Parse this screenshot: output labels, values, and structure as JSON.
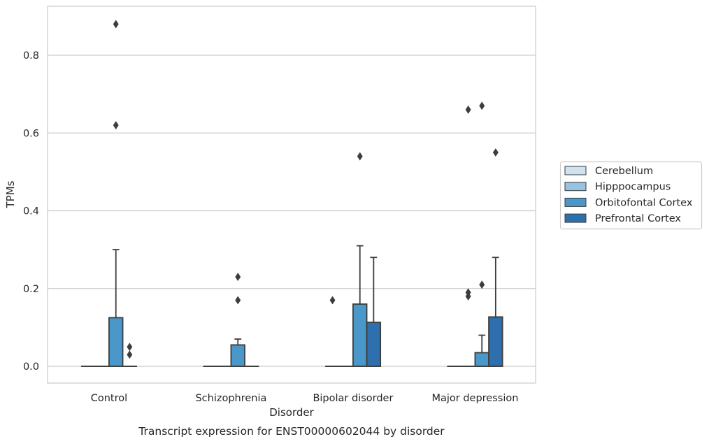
{
  "chart_data": {
    "type": "boxplot",
    "title": "",
    "caption": "Transcript expression for ENST00000602044 by disorder",
    "xlabel": "Disorder",
    "ylabel": "TPMs",
    "ylim": [
      -0.042,
      0.93
    ],
    "yticks": [
      0.0,
      0.2,
      0.4,
      0.6,
      0.8
    ],
    "ytick_labels": [
      "0.0",
      "0.2",
      "0.4",
      "0.6",
      "0.8"
    ],
    "grid": "horizontal",
    "legend_position": "right",
    "categories": [
      "Control",
      "Schizophrenia",
      "Bipolar disorder",
      "Major depression"
    ],
    "series": [
      {
        "name": "Cerebellum",
        "color": "#d0e1f2",
        "boxes": [
          {
            "category": "Control",
            "min": 0,
            "q1": 0,
            "median": 0,
            "q3": 0,
            "max": 0,
            "outliers": []
          },
          {
            "category": "Schizophrenia",
            "min": 0,
            "q1": 0,
            "median": 0,
            "q3": 0,
            "max": 0,
            "outliers": []
          },
          {
            "category": "Bipolar disorder",
            "min": 0,
            "q1": 0,
            "median": 0,
            "q3": 0,
            "max": 0,
            "outliers": [
              0.17
            ]
          },
          {
            "category": "Major depression",
            "min": 0,
            "q1": 0,
            "median": 0,
            "q3": 0,
            "max": 0,
            "outliers": []
          }
        ]
      },
      {
        "name": "Hipppocampus",
        "color": "#94c4df",
        "boxes": [
          {
            "category": "Control",
            "min": 0,
            "q1": 0,
            "median": 0,
            "q3": 0,
            "max": 0,
            "outliers": []
          },
          {
            "category": "Schizophrenia",
            "min": 0,
            "q1": 0,
            "median": 0,
            "q3": 0,
            "max": 0,
            "outliers": []
          },
          {
            "category": "Bipolar disorder",
            "min": 0,
            "q1": 0,
            "median": 0,
            "q3": 0,
            "max": 0,
            "outliers": []
          },
          {
            "category": "Major depression",
            "min": 0,
            "q1": 0,
            "median": 0,
            "q3": 0,
            "max": 0,
            "outliers": [
              0.66,
              0.19,
              0.18
            ]
          }
        ]
      },
      {
        "name": "Orbitofontal Cortex",
        "color": "#4a98c9",
        "boxes": [
          {
            "category": "Control",
            "min": 0,
            "q1": 0,
            "median": 0,
            "q3": 0.125,
            "max": 0.3,
            "outliers": [
              0.88,
              0.62
            ]
          },
          {
            "category": "Schizophrenia",
            "min": 0,
            "q1": 0,
            "median": 0,
            "q3": 0.055,
            "max": 0.07,
            "outliers": [
              0.23,
              0.17
            ]
          },
          {
            "category": "Bipolar disorder",
            "min": 0,
            "q1": 0,
            "median": 0,
            "q3": 0.16,
            "max": 0.31,
            "outliers": [
              0.54
            ]
          },
          {
            "category": "Major depression",
            "min": 0,
            "q1": 0,
            "median": 0,
            "q3": 0.035,
            "max": 0.08,
            "outliers": [
              0.67,
              0.21
            ]
          }
        ]
      },
      {
        "name": "Prefrontal Cortex",
        "color": "#2e6fad",
        "boxes": [
          {
            "category": "Control",
            "min": 0,
            "q1": 0,
            "median": 0,
            "q3": 0,
            "max": 0,
            "outliers": [
              0.05,
              0.03
            ]
          },
          {
            "category": "Schizophrenia",
            "min": 0,
            "q1": 0,
            "median": 0,
            "q3": 0,
            "max": 0,
            "outliers": []
          },
          {
            "category": "Bipolar disorder",
            "min": 0,
            "q1": 0,
            "median": 0,
            "q3": 0.113,
            "max": 0.28,
            "outliers": []
          },
          {
            "category": "Major depression",
            "min": 0,
            "q1": 0,
            "median": 0,
            "q3": 0.127,
            "max": 0.28,
            "outliers": [
              0.55
            ]
          }
        ]
      }
    ]
  }
}
